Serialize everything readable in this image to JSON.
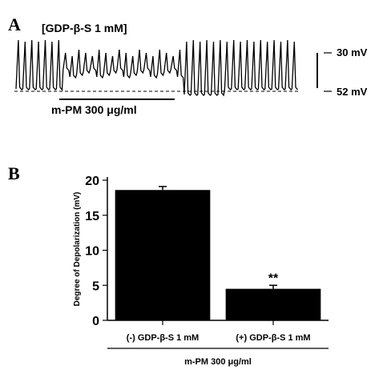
{
  "panel_a": {
    "letter": "A",
    "condition_label": "[GDP-β-S 1 mM]",
    "treatment_label": "m-PM 300 μg/ml",
    "scale_top_label": "30 mV",
    "scale_bottom_label": "52 mV",
    "trace_color": "#000000"
  },
  "panel_b": {
    "letter": "B",
    "group_label": "m-PM 300 μg/ml"
  },
  "chart_data": {
    "type": "bar",
    "categories": [
      "(-) GDP-β-S 1 mM",
      "(+) GDP-β-S 1 mM"
    ],
    "values": [
      18.6,
      4.5
    ],
    "errors": [
      0.5,
      0.5
    ],
    "annotations": [
      "",
      "**"
    ],
    "ylabel": "Degree of Depolarization (mV)",
    "xlabel": "",
    "ylim": [
      0,
      20
    ],
    "yticks": [
      "0",
      "5",
      "10",
      "15",
      "20"
    ],
    "bar_color": "#000000"
  }
}
